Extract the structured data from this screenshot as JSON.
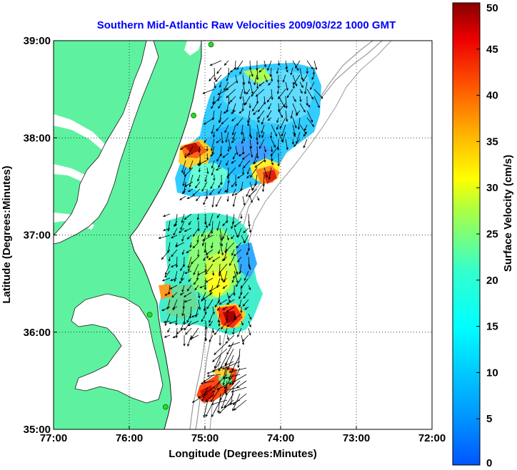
{
  "title": "Southern Mid-Atlantic Raw Velocities 2009/03/22 1000 GMT",
  "map": {
    "xlabel": "Longitude (Degrees:Minutes)",
    "ylabel": "Latitude (Degrees:Minutes)",
    "lon_ticks": [
      {
        "lon": -77,
        "label": "77:00"
      },
      {
        "lon": -76,
        "label": "76:00"
      },
      {
        "lon": -75,
        "label": "75:00"
      },
      {
        "lon": -74,
        "label": "74:00"
      },
      {
        "lon": -73,
        "label": "73:00"
      },
      {
        "lon": -72,
        "label": "72:00"
      }
    ],
    "lat_ticks": [
      {
        "lat": 35,
        "label": "35:00"
      },
      {
        "lat": 36,
        "label": "36:00"
      },
      {
        "lat": 37,
        "label": "37:00"
      },
      {
        "lat": 38,
        "label": "38:00"
      },
      {
        "lat": 39,
        "label": "39:00"
      }
    ],
    "lon_range": [
      -77,
      -72
    ],
    "lat_range": [
      35,
      39
    ],
    "grid": true,
    "land_color": "#5ef2a0",
    "sites": [
      {
        "lon": -74.92,
        "lat": 38.96
      },
      {
        "lon": -75.15,
        "lat": 38.23
      },
      {
        "lon": -75.73,
        "lat": 36.18
      },
      {
        "lon": -75.52,
        "lat": 35.23
      }
    ]
  },
  "colorbar": {
    "label": "Surface Velocity (cm/s)",
    "min": 0,
    "max": 50,
    "ticks": [
      0,
      5,
      10,
      15,
      20,
      25,
      30,
      35,
      40,
      45,
      50
    ],
    "colormap": "jet"
  },
  "colors": {
    "title": "#0000ff",
    "coast": "#1a1a1a",
    "bathymetry": "#9a9a9a",
    "arrows": "#000000"
  }
}
